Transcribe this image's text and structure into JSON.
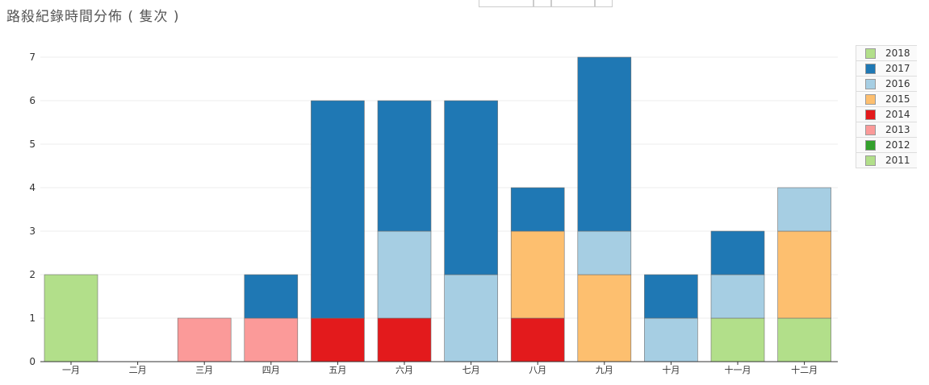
{
  "chart_data": {
    "type": "bar",
    "stacked": true,
    "title": "路殺紀錄時間分佈 ( 隻次 )",
    "xlabel": "",
    "ylabel": "",
    "ylim": [
      0,
      7
    ],
    "yticks": [
      0,
      1,
      2,
      3,
      4,
      5,
      6,
      7
    ],
    "grid": true,
    "legend_position": "right",
    "categories": [
      "一月",
      "二月",
      "三月",
      "四月",
      "五月",
      "六月",
      "七月",
      "八月",
      "九月",
      "十月",
      "十一月",
      "十二月"
    ],
    "series": [
      {
        "name": "2011",
        "color": "#b2df8a",
        "values": [
          2,
          0,
          0,
          0,
          0,
          0,
          0,
          0,
          0,
          0,
          1,
          1
        ]
      },
      {
        "name": "2012",
        "color": "#33a02c",
        "values": [
          0,
          0,
          0,
          0,
          0,
          0,
          0,
          0,
          0,
          0,
          0,
          0
        ]
      },
      {
        "name": "2013",
        "color": "#fb9a99",
        "values": [
          0,
          0,
          1,
          1,
          0,
          0,
          0,
          0,
          0,
          0,
          0,
          0
        ]
      },
      {
        "name": "2014",
        "color": "#e31a1c",
        "values": [
          0,
          0,
          0,
          0,
          1,
          1,
          0,
          1,
          0,
          0,
          0,
          0
        ]
      },
      {
        "name": "2015",
        "color": "#fdbf6f",
        "values": [
          0,
          0,
          0,
          0,
          0,
          0,
          0,
          2,
          2,
          0,
          0,
          2
        ]
      },
      {
        "name": "2016",
        "color": "#a6cee3",
        "values": [
          0,
          0,
          0,
          0,
          0,
          2,
          2,
          0,
          1,
          1,
          1,
          1
        ]
      },
      {
        "name": "2017",
        "color": "#1f78b4",
        "values": [
          0,
          0,
          0,
          1,
          5,
          3,
          4,
          1,
          4,
          1,
          1,
          0
        ]
      },
      {
        "name": "2018",
        "color": "#b2df8a",
        "values": [
          0,
          0,
          0,
          0,
          0,
          0,
          0,
          0,
          0,
          0,
          0,
          0
        ]
      }
    ],
    "legend_order": [
      "2018",
      "2017",
      "2016",
      "2015",
      "2014",
      "2013",
      "2012",
      "2011"
    ]
  }
}
